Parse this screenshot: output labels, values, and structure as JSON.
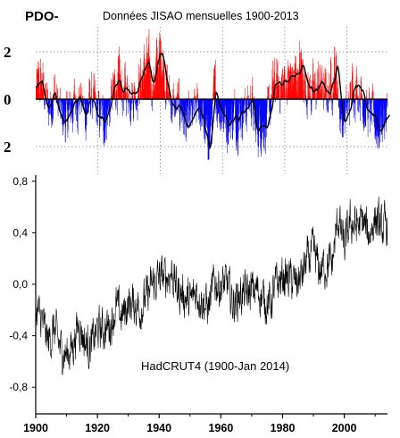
{
  "chart_data": [
    {
      "type": "bar",
      "title": "PDO-",
      "subtitle": "Données JISAO mensuelles 1900-2013",
      "x_range": [
        1900,
        2013
      ],
      "ylim": [
        -2.6,
        3.0
      ],
      "y_ticks": [
        {
          "value": 2,
          "label": "2"
        },
        {
          "value": 0,
          "label": "0"
        },
        {
          "value": -2,
          "label": "2"
        }
      ],
      "grid": "dotted horizontal at +2 and -2, dotted vertical every 20 years",
      "colors": {
        "positive": "#ff0000",
        "negative": "#0000ff",
        "smoothed": "#000000"
      },
      "anomaly_profile": [
        [
          1900,
          0.3
        ],
        [
          1902,
          0.8
        ],
        [
          1904,
          -0.5
        ],
        [
          1906,
          0.4
        ],
        [
          1908,
          -0.8
        ],
        [
          1910,
          -1.0
        ],
        [
          1912,
          -0.3
        ],
        [
          1914,
          0.2
        ],
        [
          1916,
          -0.7
        ],
        [
          1918,
          0.1
        ],
        [
          1920,
          -0.8
        ],
        [
          1922,
          -0.9
        ],
        [
          1924,
          -0.4
        ],
        [
          1926,
          0.8
        ],
        [
          1928,
          0.3
        ],
        [
          1930,
          0.5
        ],
        [
          1932,
          0.3
        ],
        [
          1934,
          0.9
        ],
        [
          1936,
          1.5
        ],
        [
          1938,
          0.7
        ],
        [
          1940,
          1.9
        ],
        [
          1941,
          2.0
        ],
        [
          1943,
          0.2
        ],
        [
          1945,
          -0.5
        ],
        [
          1947,
          -0.3
        ],
        [
          1949,
          -1.4
        ],
        [
          1951,
          -0.8
        ],
        [
          1953,
          -0.3
        ],
        [
          1955,
          -1.6
        ],
        [
          1956,
          -2.2
        ],
        [
          1958,
          0.3
        ],
        [
          1960,
          -0.4
        ],
        [
          1962,
          -1.0
        ],
        [
          1964,
          -0.8
        ],
        [
          1966,
          -0.5
        ],
        [
          1968,
          -0.4
        ],
        [
          1970,
          0.1
        ],
        [
          1971,
          -1.5
        ],
        [
          1973,
          -0.9
        ],
        [
          1975,
          -1.2
        ],
        [
          1977,
          0.6
        ],
        [
          1980,
          0.7
        ],
        [
          1982,
          0.9
        ],
        [
          1984,
          1.0
        ],
        [
          1986,
          1.4
        ],
        [
          1988,
          0.6
        ],
        [
          1990,
          0.2
        ],
        [
          1992,
          0.8
        ],
        [
          1994,
          0.1
        ],
        [
          1996,
          0.9
        ],
        [
          1997,
          1.6
        ],
        [
          1999,
          -1.0
        ],
        [
          2001,
          -0.6
        ],
        [
          2003,
          0.8
        ],
        [
          2005,
          0.5
        ],
        [
          2007,
          -0.5
        ],
        [
          2009,
          -0.9
        ],
        [
          2011,
          -1.3
        ],
        [
          2013,
          -0.7
        ]
      ]
    },
    {
      "type": "line",
      "annotation": "HadCRUT4 (1900-Jan 2014)",
      "x_range": [
        1900,
        2014
      ],
      "x_ticks": [
        1900,
        1920,
        1940,
        1960,
        1980,
        2000
      ],
      "ylim": [
        -0.95,
        0.8
      ],
      "y_ticks": [
        {
          "value": 0.8,
          "label": "0,8"
        },
        {
          "value": 0.4,
          "label": "0,4"
        },
        {
          "value": 0.0,
          "label": "0,0"
        },
        {
          "value": -0.4,
          "label": "-0,4"
        },
        {
          "value": -0.8,
          "label": "-0,8"
        }
      ],
      "color": "#000000",
      "anomaly_profile": [
        [
          1900,
          -0.2
        ],
        [
          1902,
          -0.28
        ],
        [
          1904,
          -0.45
        ],
        [
          1906,
          -0.35
        ],
        [
          1908,
          -0.5
        ],
        [
          1910,
          -0.55
        ],
        [
          1912,
          -0.48
        ],
        [
          1914,
          -0.3
        ],
        [
          1916,
          -0.45
        ],
        [
          1918,
          -0.48
        ],
        [
          1920,
          -0.35
        ],
        [
          1922,
          -0.35
        ],
        [
          1924,
          -0.32
        ],
        [
          1926,
          -0.18
        ],
        [
          1928,
          -0.25
        ],
        [
          1930,
          -0.15
        ],
        [
          1932,
          -0.15
        ],
        [
          1934,
          -0.18
        ],
        [
          1936,
          -0.1
        ],
        [
          1938,
          0.0
        ],
        [
          1940,
          0.05
        ],
        [
          1942,
          0.05
        ],
        [
          1944,
          0.1
        ],
        [
          1946,
          -0.05
        ],
        [
          1948,
          -0.08
        ],
        [
          1950,
          -0.15
        ],
        [
          1952,
          -0.05
        ],
        [
          1954,
          -0.12
        ],
        [
          1956,
          -0.18
        ],
        [
          1958,
          0.02
        ],
        [
          1960,
          -0.02
        ],
        [
          1962,
          0.0
        ],
        [
          1964,
          -0.15
        ],
        [
          1966,
          -0.08
        ],
        [
          1968,
          -0.08
        ],
        [
          1970,
          -0.05
        ],
        [
          1972,
          -0.05
        ],
        [
          1974,
          -0.12
        ],
        [
          1976,
          -0.15
        ],
        [
          1978,
          0.0
        ],
        [
          1980,
          0.05
        ],
        [
          1982,
          0.05
        ],
        [
          1984,
          0.0
        ],
        [
          1986,
          0.05
        ],
        [
          1988,
          0.18
        ],
        [
          1990,
          0.25
        ],
        [
          1992,
          0.1
        ],
        [
          1994,
          0.15
        ],
        [
          1996,
          0.15
        ],
        [
          1998,
          0.52
        ],
        [
          2000,
          0.28
        ],
        [
          2002,
          0.48
        ],
        [
          2004,
          0.45
        ],
        [
          2006,
          0.48
        ],
        [
          2008,
          0.38
        ],
        [
          2010,
          0.52
        ],
        [
          2012,
          0.42
        ],
        [
          2014,
          0.45
        ]
      ]
    }
  ]
}
